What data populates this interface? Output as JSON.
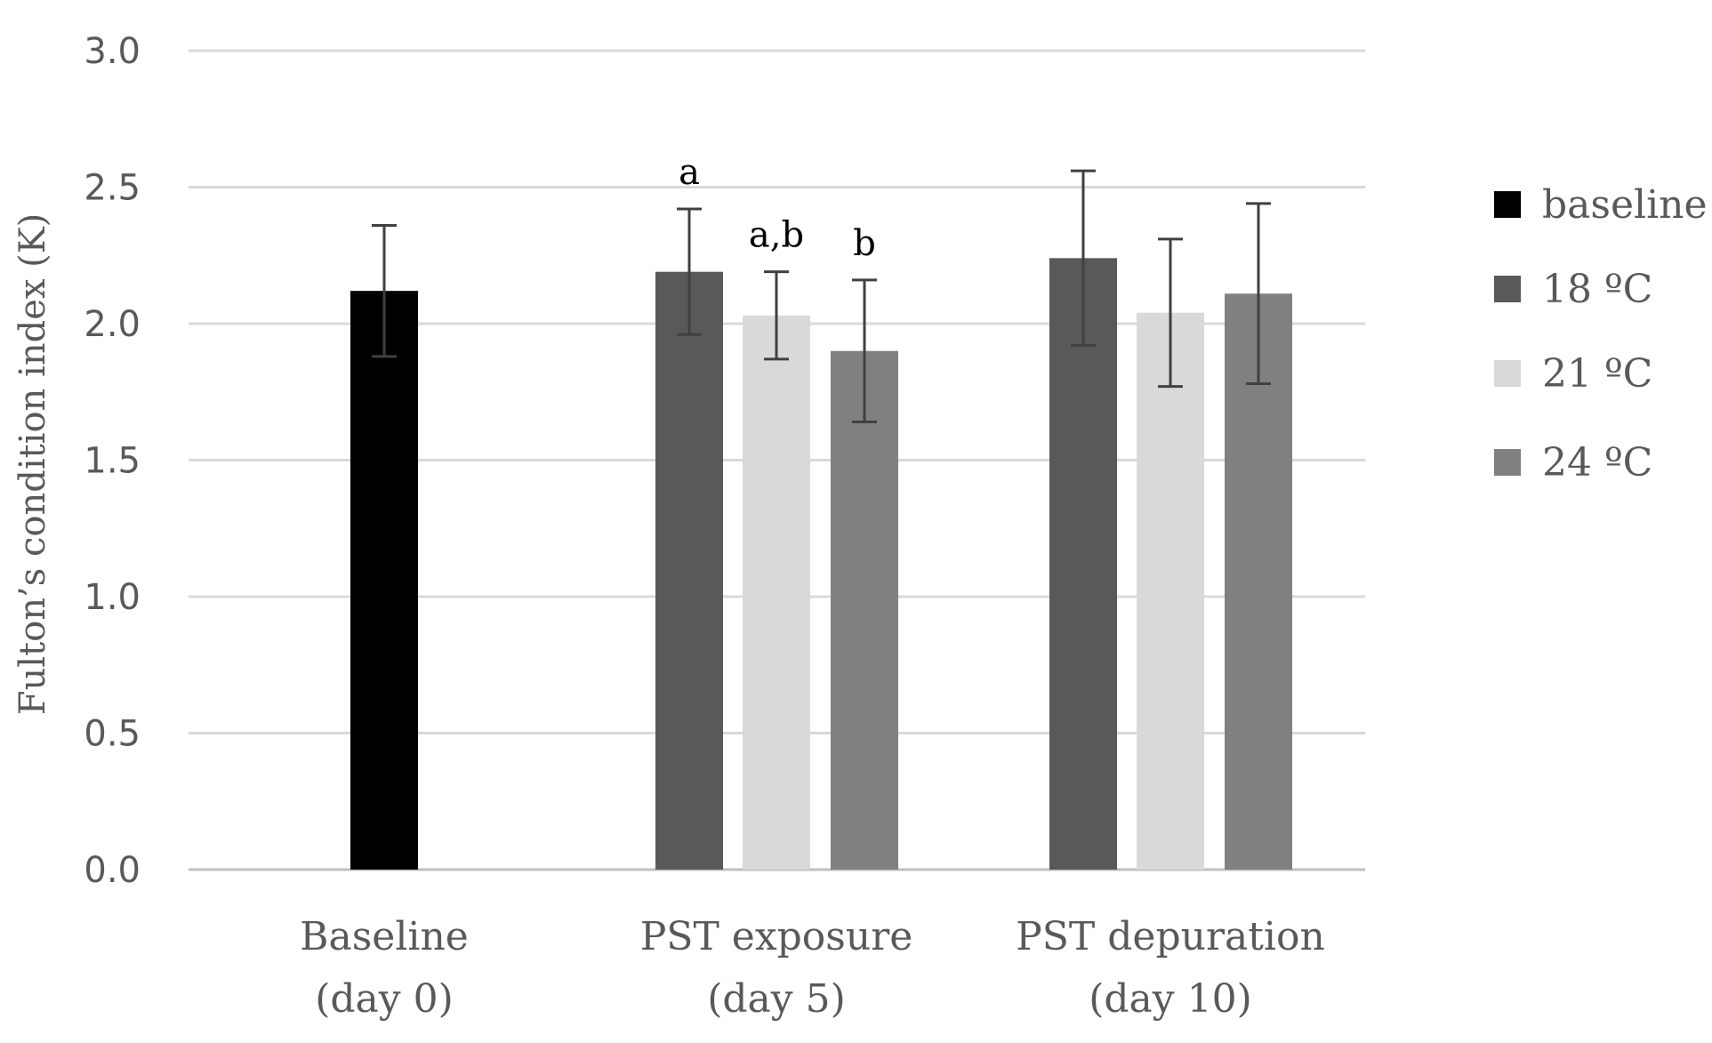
{
  "chart_data": {
    "type": "bar",
    "title": "",
    "xlabel": "",
    "ylabel": "Fulton’s condition index (K)",
    "ylim": [
      0,
      3.0
    ],
    "yticks": [
      0.0,
      0.5,
      1.0,
      1.5,
      2.0,
      2.5,
      3.0
    ],
    "ytick_labels": [
      "0.0",
      "0.5",
      "1.0",
      "1.5",
      "2.0",
      "2.5",
      "3.0"
    ],
    "grid": true,
    "legend_position": "right",
    "categories": [
      {
        "line1": "Baseline",
        "line2": "(day 0)"
      },
      {
        "line1": "PST exposure",
        "line2": "(day 5)"
      },
      {
        "line1": "PST depuration",
        "line2": "(day 10)"
      }
    ],
    "series": [
      {
        "name": "baseline",
        "color": "#000000",
        "values": [
          2.12,
          null,
          null
        ],
        "errors": [
          0.24,
          null,
          null
        ],
        "annotations": [
          null,
          null,
          null
        ]
      },
      {
        "name": "18 ºC",
        "color": "#595959",
        "values": [
          null,
          2.19,
          2.24
        ],
        "errors": [
          null,
          0.23,
          0.32
        ],
        "annotations": [
          null,
          "a",
          null
        ]
      },
      {
        "name": "21 ºC",
        "color": "#d9d9d9",
        "values": [
          null,
          2.03,
          2.04
        ],
        "errors": [
          null,
          0.16,
          0.27
        ],
        "annotations": [
          null,
          "a,b",
          null
        ]
      },
      {
        "name": "24 ºC",
        "color": "#808080",
        "values": [
          null,
          1.9,
          2.11
        ],
        "errors": [
          null,
          0.26,
          0.33
        ],
        "annotations": [
          null,
          "b",
          null
        ]
      }
    ]
  },
  "colors": {
    "grid": "#d9d9d9",
    "axis": "#bfbfbf",
    "error_bar": "#404040"
  }
}
